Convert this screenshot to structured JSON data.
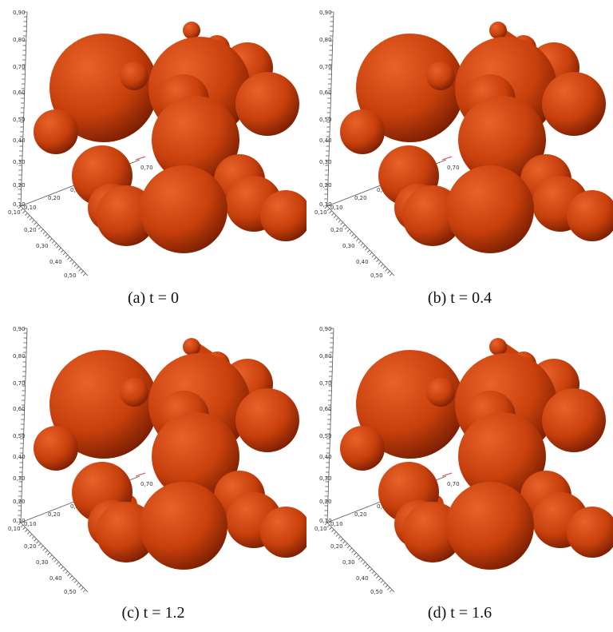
{
  "panels": [
    {
      "caption": "(a)  t = 0"
    },
    {
      "caption": "(b)  t = 0.4"
    },
    {
      "caption": "(c)  t = 1.2"
    },
    {
      "caption": "(d)  t = 1.6"
    }
  ],
  "axis_ticks": {
    "vertical": [
      "0,90",
      "0,80",
      "0,70",
      "0,60",
      "0,50",
      "0,40",
      "0,30",
      "0,20",
      "0,10"
    ],
    "depth": [
      "0,10",
      "0,20",
      "0,30",
      "0,40",
      "0,50"
    ],
    "horizontal": [
      "0,10",
      "0,20",
      "0,30"
    ],
    "inner": "0,70"
  },
  "colors": {
    "sphere_base": "#c8400c",
    "sphere_highlight": "#e8622a",
    "sphere_shadow": "#7a1e02",
    "axis_red": "#d84040",
    "axis_green": "#40b040"
  }
}
